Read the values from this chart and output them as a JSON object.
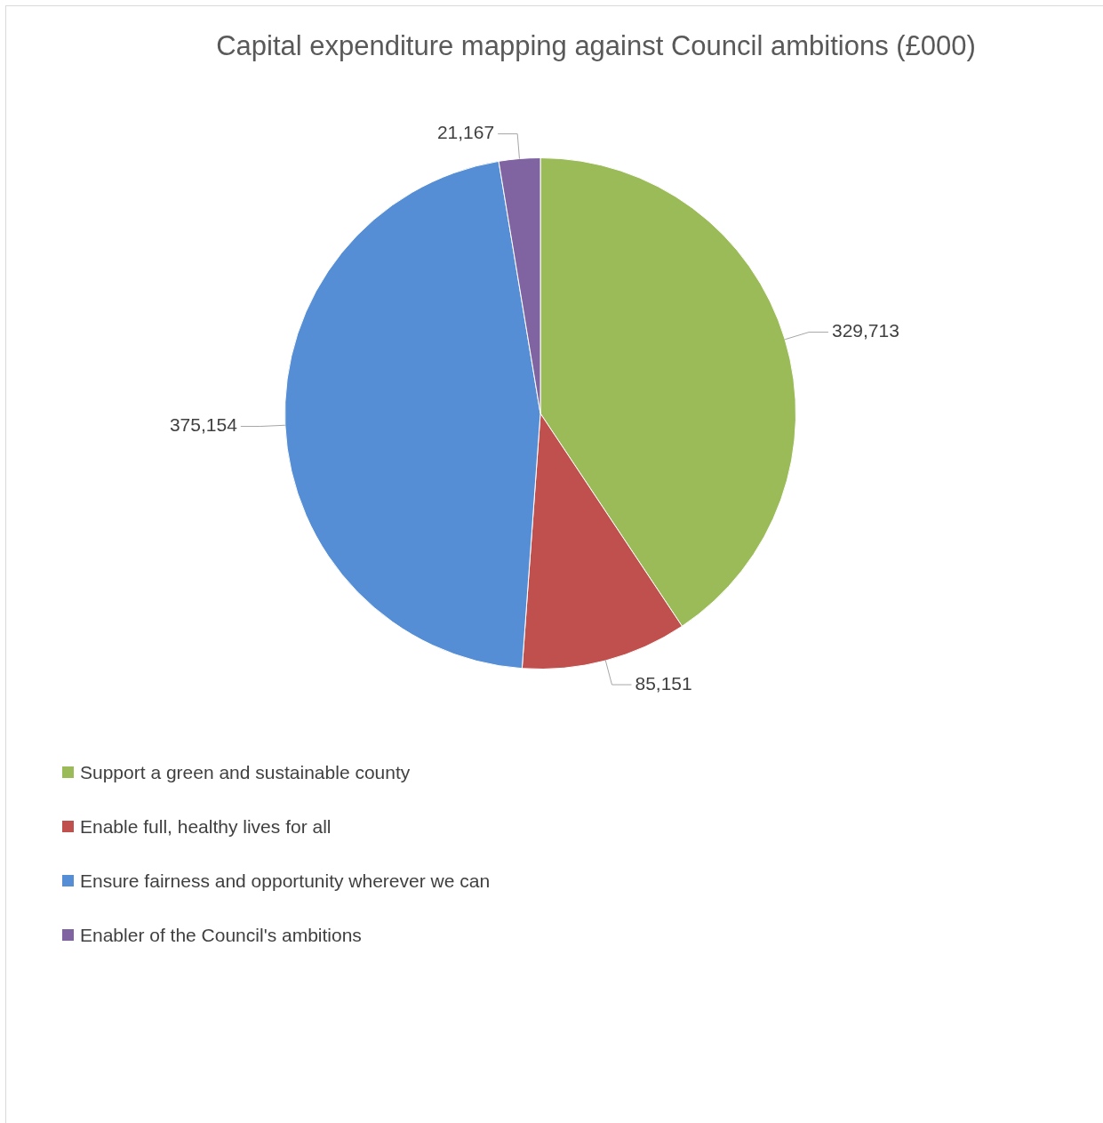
{
  "chart_data": {
    "type": "pie",
    "title": "Capital expenditure mapping against Council ambitions (£000)",
    "categories": [
      "Support a green and sustainable county",
      "Enable full, healthy lives for all",
      "Ensure fairness and opportunity wherever we can",
      "Enabler of the Council's ambitions"
    ],
    "values": [
      329713,
      85151,
      375154,
      21167
    ],
    "colors": [
      "#9bbb59",
      "#c0504d",
      "#558ed5",
      "#8064a2"
    ],
    "value_labels": [
      "329,713",
      "85,151",
      "375,154",
      "21,167"
    ],
    "legend": "bottom left"
  }
}
